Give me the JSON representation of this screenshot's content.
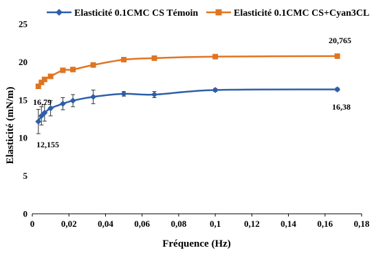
{
  "chart_data": {
    "type": "line",
    "title": "",
    "xlabel": "Fréquence (Hz)",
    "ylabel": "Elasticité (mN/m)",
    "xlim": [
      0,
      0.18
    ],
    "ylim": [
      0,
      25
    ],
    "x_ticks": [
      "0",
      "0,02",
      "0,04",
      "0,06",
      "0,08",
      "0,1",
      "0,12",
      "0,14",
      "0,16",
      "0,18"
    ],
    "y_ticks": [
      "0",
      "5",
      "10",
      "15",
      "20",
      "25"
    ],
    "grid": false,
    "legend_position": "top",
    "series": [
      {
        "name": "Elasticité 0.1CMC CS Témoin",
        "color": "#2e5eaa",
        "marker": "diamond",
        "x": [
          0.0033,
          0.005,
          0.0067,
          0.01,
          0.0167,
          0.0222,
          0.0333,
          0.05,
          0.0667,
          0.1,
          0.1667
        ],
        "y": [
          12.155,
          12.9,
          13.3,
          13.9,
          14.5,
          14.9,
          15.4,
          15.8,
          15.7,
          16.3,
          16.38
        ],
        "error": [
          1.6,
          1.2,
          1.1,
          1.0,
          0.8,
          0.8,
          0.9,
          0.3,
          0.4,
          0.2,
          0.2
        ]
      },
      {
        "name": "Elasticité 0.1CMC CS+Cyan3CL",
        "color": "#e07420",
        "marker": "square",
        "x": [
          0.0033,
          0.005,
          0.0067,
          0.01,
          0.0167,
          0.0222,
          0.0333,
          0.05,
          0.0667,
          0.1,
          0.1667
        ],
        "y": [
          16.79,
          17.3,
          17.7,
          18.1,
          18.9,
          19.0,
          19.6,
          20.3,
          20.5,
          20.7,
          20.765
        ]
      }
    ],
    "annotations": [
      "16,79",
      "12,155",
      "20,765",
      "16,38"
    ]
  }
}
